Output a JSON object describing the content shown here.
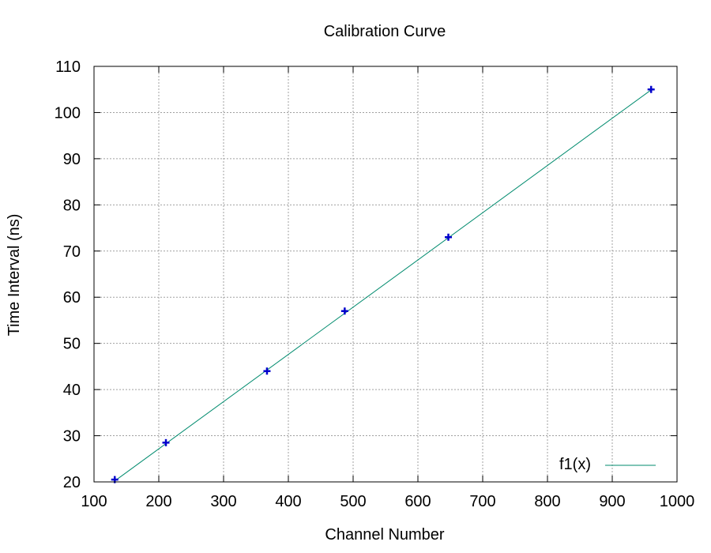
{
  "chart_data": {
    "type": "scatter",
    "title": "Calibration Curve",
    "xlabel": "Channel Number",
    "ylabel": "Time Interval (ns)",
    "xlim": [
      100,
      1000
    ],
    "ylim": [
      20,
      110
    ],
    "x_ticks": [
      100,
      200,
      300,
      400,
      500,
      600,
      700,
      800,
      900,
      1000
    ],
    "y_ticks": [
      20,
      30,
      40,
      50,
      60,
      70,
      80,
      90,
      100,
      110
    ],
    "grid": true,
    "legend_position": "bottom-right",
    "points": {
      "marker": "plus",
      "color": "#0000cc",
      "x": [
        132,
        211,
        367,
        487,
        647,
        960
      ],
      "y": [
        20.5,
        28.5,
        44,
        57,
        73,
        105
      ]
    },
    "series": [
      {
        "name": "f1(x)",
        "kind": "line",
        "color": "#008b6e",
        "x": [
          132,
          960
        ],
        "y": [
          20.2,
          104.9
        ]
      }
    ]
  }
}
